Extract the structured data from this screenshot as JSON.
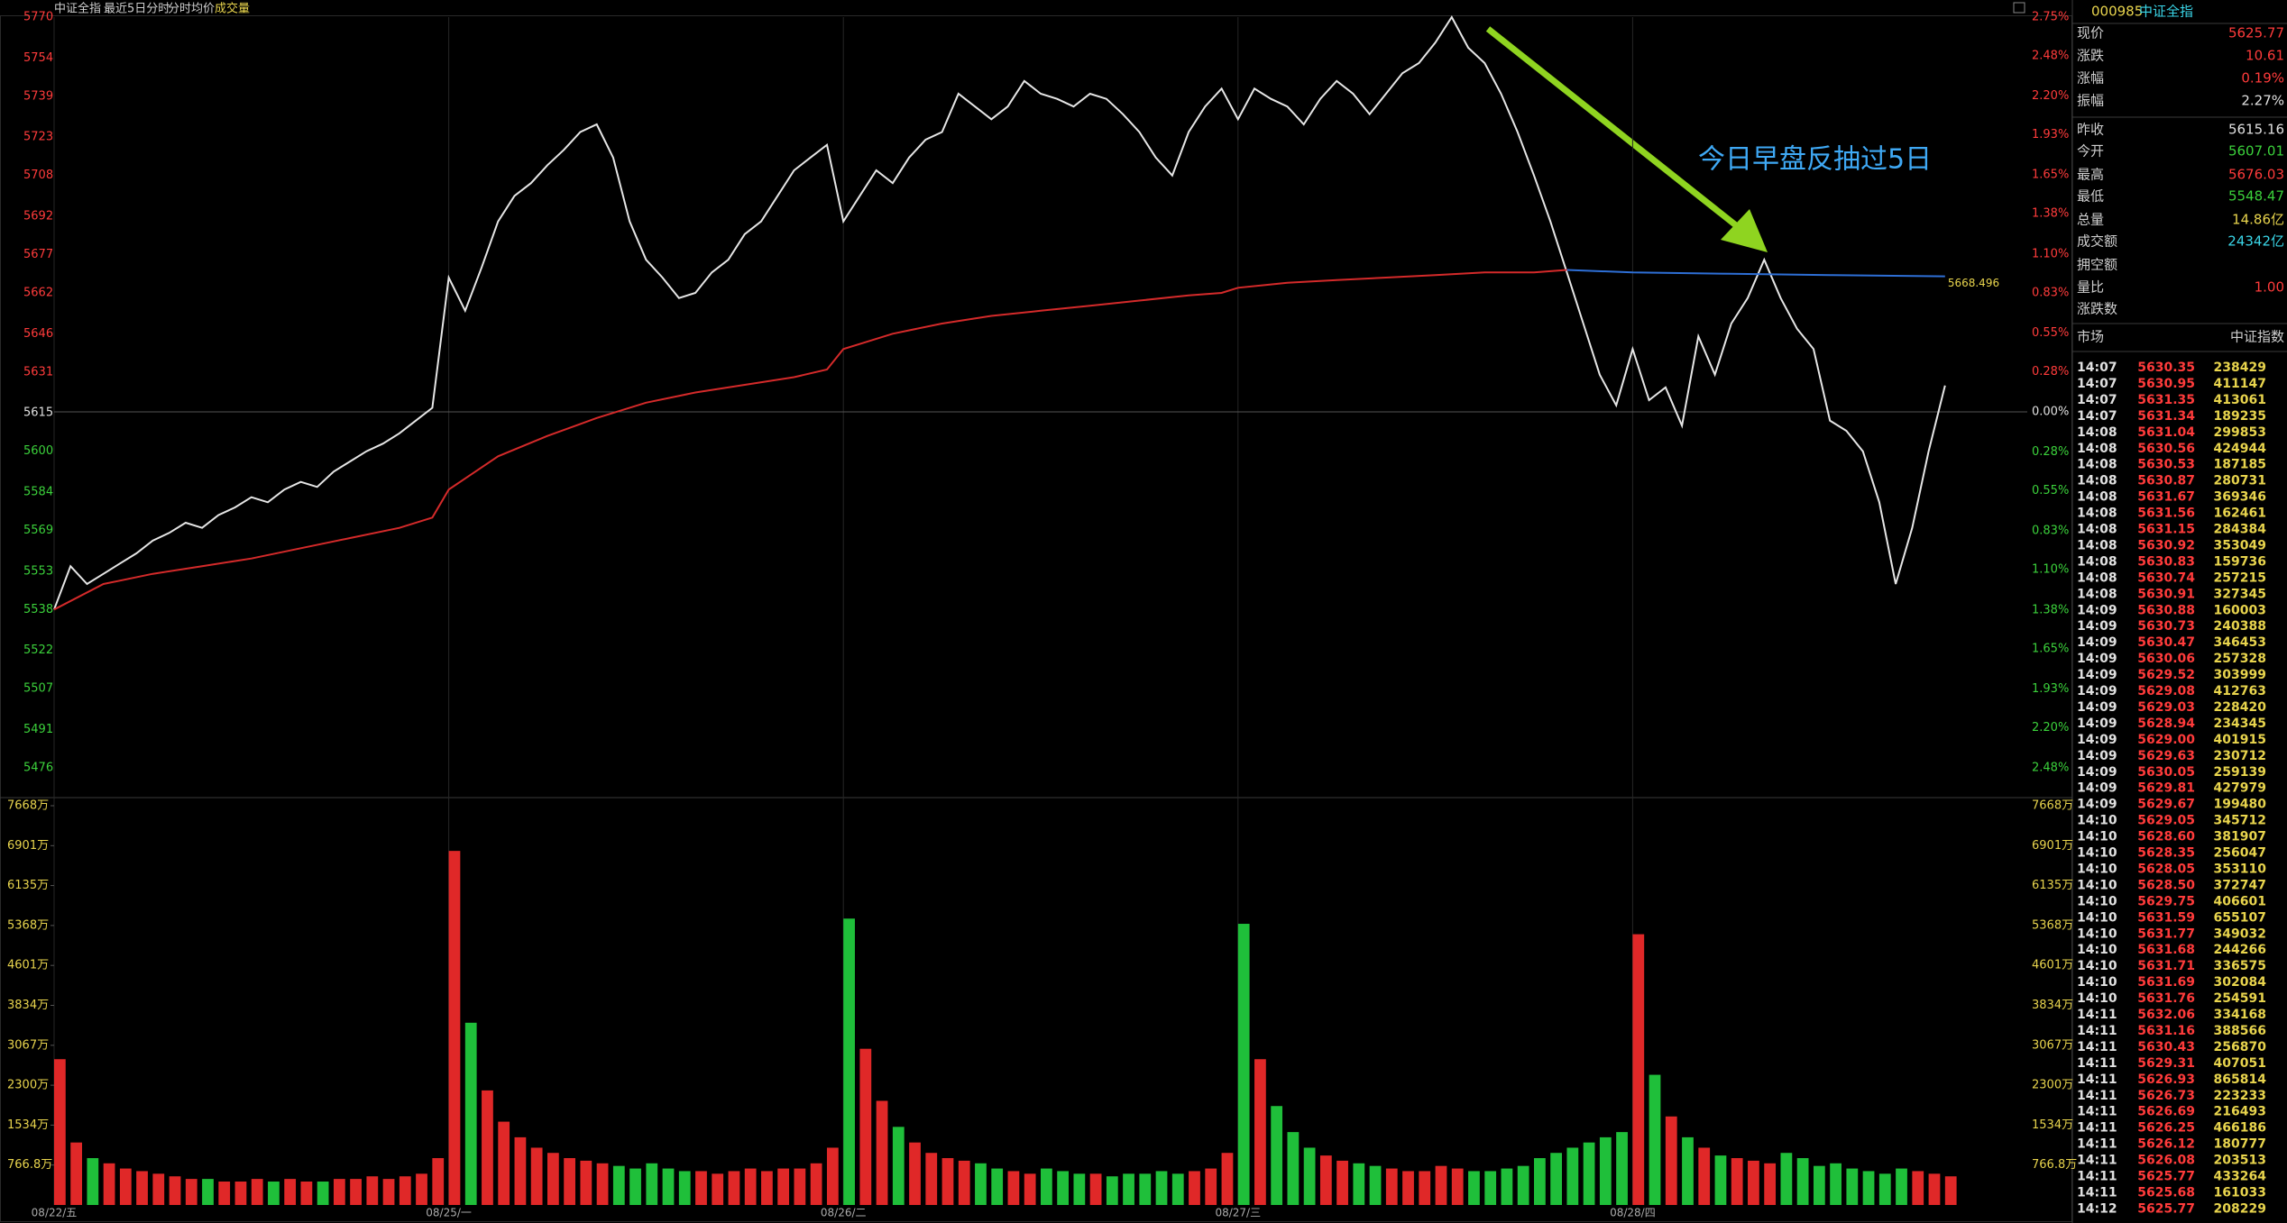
{
  "header": {
    "title": "中证全指",
    "period": "最近5日分时",
    "avg_label": "分时均价",
    "volume_label": "成交量"
  },
  "chart_data": [
    {
      "type": "line",
      "x": [
        0,
        10,
        20,
        30,
        40,
        50,
        60,
        70,
        80,
        90,
        100,
        110,
        120,
        130,
        140,
        150,
        160,
        170,
        180,
        190,
        200,
        210,
        220,
        230,
        240,
        250,
        260,
        270,
        280,
        290,
        300,
        310,
        320,
        330,
        340,
        350,
        360,
        370,
        380,
        390,
        400,
        410,
        420,
        430,
        440,
        450,
        460,
        470,
        480,
        490,
        500,
        510,
        520,
        530,
        540,
        550,
        560,
        570,
        580,
        590,
        600,
        610,
        620,
        630,
        640,
        650,
        660,
        670,
        680,
        690,
        700,
        710,
        720,
        730,
        740,
        750,
        760,
        770,
        780,
        790,
        800,
        810,
        820,
        830,
        840,
        850,
        860,
        870,
        880,
        890,
        900,
        910,
        920,
        930,
        940,
        950,
        960,
        970,
        980,
        990,
        1000,
        1010,
        1020,
        1030,
        1040,
        1050,
        1060,
        1070,
        1080,
        1090,
        1100,
        1110,
        1120,
        1130,
        1140,
        1150
      ],
      "xlim": [
        0,
        1200
      ],
      "series": [
        {
          "color": "#e6e6e6",
          "values": [
            5538,
            5555,
            5548,
            5552,
            5556,
            5560,
            5565,
            5568,
            5572,
            5570,
            5575,
            5578,
            5582,
            5580,
            5585,
            5588,
            5586,
            5592,
            5596,
            5600,
            5603,
            5607,
            5612,
            5617,
            5668,
            5655,
            5672,
            5690,
            5700,
            5705,
            5712,
            5718,
            5725,
            5728,
            5715,
            5690,
            5675,
            5668,
            5660,
            5662,
            5670,
            5675,
            5685,
            5690,
            5700,
            5710,
            5715,
            5720,
            5690,
            5700,
            5710,
            5705,
            5715,
            5722,
            5725,
            5740,
            5735,
            5730,
            5735,
            5745,
            5740,
            5738,
            5735,
            5740,
            5738,
            5732,
            5725,
            5715,
            5708,
            5725,
            5735,
            5742,
            5730,
            5742,
            5738,
            5735,
            5728,
            5738,
            5745,
            5740,
            5732,
            5740,
            5748,
            5752,
            5760,
            5770,
            5758,
            5752,
            5740,
            5725,
            5708,
            5690,
            5670,
            5650,
            5630,
            5618,
            5640,
            5620,
            5625,
            5610,
            5645,
            5630,
            5650,
            5660,
            5675,
            5660,
            5648,
            5640,
            5612,
            5608,
            5600,
            5580,
            5548,
            5570,
            5600,
            5625.77
          ]
        },
        {
          "name": "分时均价",
          "color": "#d42a2a",
          "x": [
            0,
            30,
            60,
            90,
            120,
            150,
            180,
            210,
            230,
            240,
            270,
            300,
            330,
            360,
            390,
            420,
            450,
            470,
            480,
            510,
            540,
            570,
            600,
            630,
            660,
            690,
            710,
            720,
            750,
            780,
            810,
            840,
            870,
            900,
            920
          ],
          "values": [
            5538,
            5548,
            5552,
            5555,
            5558,
            5562,
            5566,
            5570,
            5574,
            5585,
            5598,
            5606,
            5613,
            5619,
            5623,
            5626,
            5629,
            5632,
            5640,
            5646,
            5650,
            5653,
            5655,
            5657,
            5659,
            5661,
            5662,
            5664,
            5666,
            5667,
            5668,
            5669,
            5670,
            5670,
            5671
          ]
        },
        {
          "color": "#2e6fd6",
          "x": [
            920,
            960,
            1020,
            1080,
            1150
          ],
          "values": [
            5671,
            5670,
            5669.5,
            5669,
            5668.496
          ]
        }
      ],
      "ylim": [
        5476,
        5770
      ],
      "yticks": [
        5770,
        5754,
        5739,
        5723,
        5708,
        5692,
        5677,
        5662,
        5646,
        5631,
        5615,
        5600,
        5584,
        5569,
        5553,
        5538,
        5522,
        5507,
        5491,
        5476
      ],
      "y2lim": [
        -2.48,
        2.75
      ],
      "y2ticks": [
        {
          "value": 2.75,
          "label": "2.75%"
        },
        {
          "value": 2.48,
          "label": "2.48%"
        },
        {
          "value": 2.2,
          "label": "2.20%"
        },
        {
          "value": 1.93,
          "label": "1.93%"
        },
        {
          "value": 1.65,
          "label": "1.65%"
        },
        {
          "value": 1.38,
          "label": "1.38%"
        },
        {
          "value": 1.1,
          "label": "1.10%"
        },
        {
          "value": 0.83,
          "label": "0.83%"
        },
        {
          "value": 0.55,
          "label": "0.55%"
        },
        {
          "value": 0.28,
          "label": "0.28%"
        },
        {
          "value": 0,
          "label": "0.00%"
        },
        {
          "value": -0.28,
          "label": "0.28%"
        },
        {
          "value": -0.55,
          "label": "0.55%"
        },
        {
          "value": -0.83,
          "label": "0.83%"
        },
        {
          "value": -1.1,
          "label": "1.10%"
        },
        {
          "value": -1.38,
          "label": "1.38%"
        },
        {
          "value": -1.65,
          "label": "1.65%"
        },
        {
          "value": -1.93,
          "label": "1.93%"
        },
        {
          "value": -2.2,
          "label": "2.20%"
        },
        {
          "value": -2.48,
          "label": "2.48%"
        }
      ],
      "annotation": "今日早盘反抽过5日"
    },
    {
      "type": "bar",
      "up_color": "#e02828",
      "down_color": "#1fbf3a",
      "values": [
        2800,
        1200,
        900,
        800,
        700,
        650,
        600,
        550,
        500,
        500,
        450,
        450,
        500,
        450,
        500,
        450,
        450,
        500,
        500,
        550,
        500,
        550,
        600,
        900,
        6800,
        3500,
        2200,
        1600,
        1300,
        1100,
        1000,
        900,
        850,
        800,
        750,
        700,
        800,
        700,
        650,
        650,
        600,
        650,
        700,
        650,
        700,
        700,
        800,
        1100,
        5500,
        3000,
        2000,
        1500,
        1200,
        1000,
        900,
        850,
        800,
        700,
        650,
        600,
        700,
        650,
        600,
        600,
        550,
        600,
        600,
        650,
        600,
        650,
        700,
        1000,
        5400,
        2800,
        1900,
        1400,
        1100,
        950,
        850,
        800,
        750,
        700,
        650,
        650,
        750,
        700,
        650,
        650,
        700,
        750,
        900,
        1000,
        1100,
        1200,
        1300,
        1400,
        5200,
        2500,
        1700,
        1300,
        1100,
        950,
        900,
        850,
        800,
        1000,
        900,
        750,
        800,
        700,
        650,
        600,
        700,
        650,
        600,
        550
      ],
      "ylim": [
        0,
        7668
      ],
      "yticks": [
        {
          "value": 7668,
          "label": "7668万"
        },
        {
          "value": 6901,
          "label": "6901万"
        },
        {
          "value": 6135,
          "label": "6135万"
        },
        {
          "value": 5368,
          "label": "5368万"
        },
        {
          "value": 4601,
          "label": "4601万"
        },
        {
          "value": 3834,
          "label": "3834万"
        },
        {
          "value": 3067,
          "label": "3067万"
        },
        {
          "value": 2300,
          "label": "2300万"
        },
        {
          "value": 1534,
          "label": "1534万"
        },
        {
          "value": 766.8,
          "label": "766.8万"
        }
      ],
      "xticks": [
        {
          "value": 0,
          "label": "08/22/五"
        },
        {
          "value": 240,
          "label": "08/25/一"
        },
        {
          "value": 480,
          "label": "08/26/二"
        },
        {
          "value": 720,
          "label": "08/27/三"
        },
        {
          "value": 960,
          "label": "08/28/四"
        }
      ]
    }
  ],
  "quote": {
    "code": "000985",
    "name": "中证全指",
    "groups": [
      [
        {
          "label": "现价",
          "value": "5625.77",
          "color": "#ff3b3b"
        },
        {
          "label": "涨跌",
          "value": "10.61",
          "color": "#ff3b3b"
        },
        {
          "label": "涨幅",
          "value": "0.19%",
          "color": "#ff3b3b"
        },
        {
          "label": "振幅",
          "value": "2.27%",
          "color": "#e0e0e0"
        }
      ],
      [
        {
          "label": "昨收",
          "value": "5615.16",
          "color": "#e0e0e0"
        },
        {
          "label": "今开",
          "value": "5607.01",
          "color": "#3bd13b"
        },
        {
          "label": "最高",
          "value": "5676.03",
          "color": "#ff3b3b"
        },
        {
          "label": "最低",
          "value": "5548.47",
          "color": "#3bd13b"
        },
        {
          "label": "总量",
          "value": "14.86亿",
          "color": "#e8d44d"
        },
        {
          "label": "成交额",
          "value": "24342亿",
          "color": "#3ad6e8"
        },
        {
          "label": "拥空额"
        },
        {
          "label": "量比",
          "value": "1.00",
          "color": "#ff3b3b"
        },
        {
          "label": "涨跌数"
        }
      ]
    ]
  },
  "trades": {
    "headers": [
      "市场",
      "中证指数"
    ],
    "rows": [
      [
        "14:07",
        "5630.35",
        "238429"
      ],
      [
        "14:07",
        "5630.95",
        "411147"
      ],
      [
        "14:07",
        "5631.35",
        "413061"
      ],
      [
        "14:07",
        "5631.34",
        "189235"
      ],
      [
        "14:08",
        "5631.04",
        "299853"
      ],
      [
        "14:08",
        "5630.56",
        "424944"
      ],
      [
        "14:08",
        "5630.53",
        "187185"
      ],
      [
        "14:08",
        "5630.87",
        "280731"
      ],
      [
        "14:08",
        "5631.67",
        "369346"
      ],
      [
        "14:08",
        "5631.56",
        "162461"
      ],
      [
        "14:08",
        "5631.15",
        "284384"
      ],
      [
        "14:08",
        "5630.92",
        "353049"
      ],
      [
        "14:08",
        "5630.83",
        "159736"
      ],
      [
        "14:08",
        "5630.74",
        "257215"
      ],
      [
        "14:08",
        "5630.91",
        "327345"
      ],
      [
        "14:09",
        "5630.88",
        "160003"
      ],
      [
        "14:09",
        "5630.73",
        "240388"
      ],
      [
        "14:09",
        "5630.47",
        "346453"
      ],
      [
        "14:09",
        "5630.06",
        "257328"
      ],
      [
        "14:09",
        "5629.52",
        "303999"
      ],
      [
        "14:09",
        "5629.08",
        "412763"
      ],
      [
        "14:09",
        "5629.03",
        "228420"
      ],
      [
        "14:09",
        "5628.94",
        "234345"
      ],
      [
        "14:09",
        "5629.00",
        "401915"
      ],
      [
        "14:09",
        "5629.63",
        "230712"
      ],
      [
        "14:09",
        "5630.05",
        "259139"
      ],
      [
        "14:09",
        "5629.81",
        "427979"
      ],
      [
        "14:09",
        "5629.67",
        "199480"
      ],
      [
        "14:10",
        "5629.05",
        "345712"
      ],
      [
        "14:10",
        "5628.60",
        "381907"
      ],
      [
        "14:10",
        "5628.35",
        "256047"
      ],
      [
        "14:10",
        "5628.05",
        "353110"
      ],
      [
        "14:10",
        "5628.50",
        "372747"
      ],
      [
        "14:10",
        "5629.75",
        "406601"
      ],
      [
        "14:10",
        "5631.59",
        "655107"
      ],
      [
        "14:10",
        "5631.77",
        "349032"
      ],
      [
        "14:10",
        "5631.68",
        "244266"
      ],
      [
        "14:10",
        "5631.71",
        "336575"
      ],
      [
        "14:10",
        "5631.69",
        "302084"
      ],
      [
        "14:10",
        "5631.76",
        "254591"
      ],
      [
        "14:11",
        "5632.06",
        "334168"
      ],
      [
        "14:11",
        "5631.16",
        "388566"
      ],
      [
        "14:11",
        "5630.43",
        "256870"
      ],
      [
        "14:11",
        "5629.31",
        "407051"
      ],
      [
        "14:11",
        "5626.93",
        "865814"
      ],
      [
        "14:11",
        "5626.73",
        "223233"
      ],
      [
        "14:11",
        "5626.69",
        "216493"
      ],
      [
        "14:11",
        "5626.25",
        "466186"
      ],
      [
        "14:11",
        "5626.12",
        "180777"
      ],
      [
        "14:11",
        "5626.08",
        "203513"
      ],
      [
        "14:11",
        "5625.77",
        "433264"
      ],
      [
        "14:11",
        "5625.68",
        "161033"
      ],
      [
        "14:12",
        "5625.77",
        "208229"
      ]
    ]
  }
}
